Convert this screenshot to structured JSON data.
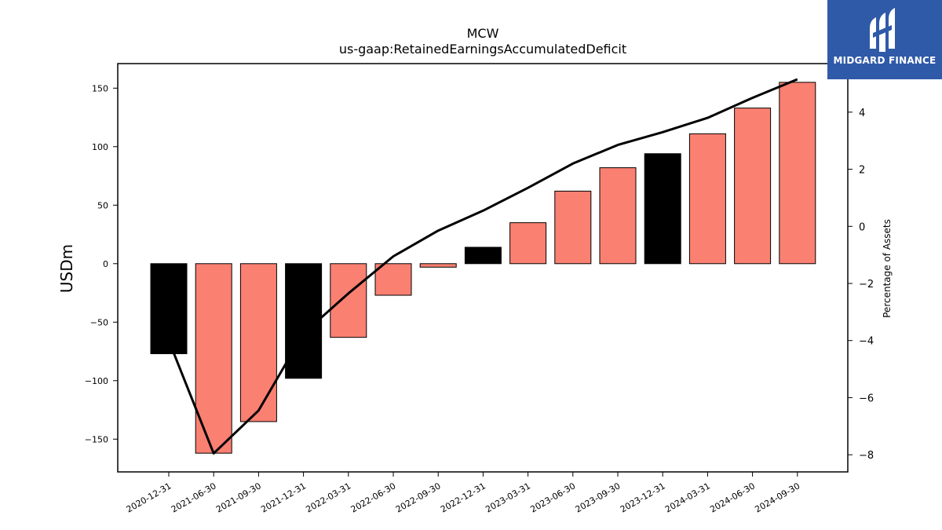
{
  "brand": {
    "name": "MIDGARD FINANCE",
    "bg_color": "#2f5aa8",
    "icon": "midgard-logo-icon"
  },
  "chart_data": {
    "type": "bar",
    "title": "MCW",
    "subtitle": "us-gaap:RetainedEarningsAccumulatedDeficit",
    "ylabel": "USDm",
    "y2label": "Percentage of Assets",
    "categories": [
      "2020-12-31",
      "2021-06-30",
      "2021-09-30",
      "2021-12-31",
      "2022-03-31",
      "2022-06-30",
      "2022-09-30",
      "2022-12-31",
      "2023-03-31",
      "2023-06-30",
      "2023-09-30",
      "2023-12-31",
      "2024-03-31",
      "2024-06-30",
      "2024-09-30"
    ],
    "series": [
      {
        "type": "bar",
        "axis": "left",
        "values": [
          -77,
          -162,
          -135,
          -98,
          -63,
          -27,
          -3,
          14,
          35,
          62,
          82,
          94,
          111,
          133,
          155
        ],
        "colors": [
          "#000000",
          "#fa8072",
          "#fa8072",
          "#000000",
          "#fa8072",
          "#fa8072",
          "#fa8072",
          "#000000",
          "#fa8072",
          "#fa8072",
          "#fa8072",
          "#000000",
          "#fa8072",
          "#fa8072",
          "#fa8072"
        ]
      },
      {
        "type": "line",
        "axis": "right",
        "color": "#000000",
        "values": [
          -4.0,
          -7.95,
          -6.45,
          -3.75,
          -2.35,
          -1.05,
          -0.15,
          0.55,
          1.35,
          2.2,
          2.85,
          3.3,
          3.8,
          4.5,
          5.15
        ]
      }
    ],
    "ylim": [
      -178,
      171
    ],
    "yticks": [
      -150,
      -100,
      -50,
      0,
      50,
      100,
      150
    ],
    "ytick_labels": [
      "−150",
      "−100",
      "−50",
      "0",
      "50",
      "100",
      "150"
    ],
    "y2lim": [
      -8.6,
      5.7
    ],
    "y2ticks": [
      -8,
      -6,
      -4,
      -2,
      0,
      2,
      4
    ],
    "y2tick_labels": [
      "−8",
      "−6",
      "−4",
      "−2",
      "0",
      "2",
      "4"
    ],
    "grid": false,
    "legend": "none"
  }
}
